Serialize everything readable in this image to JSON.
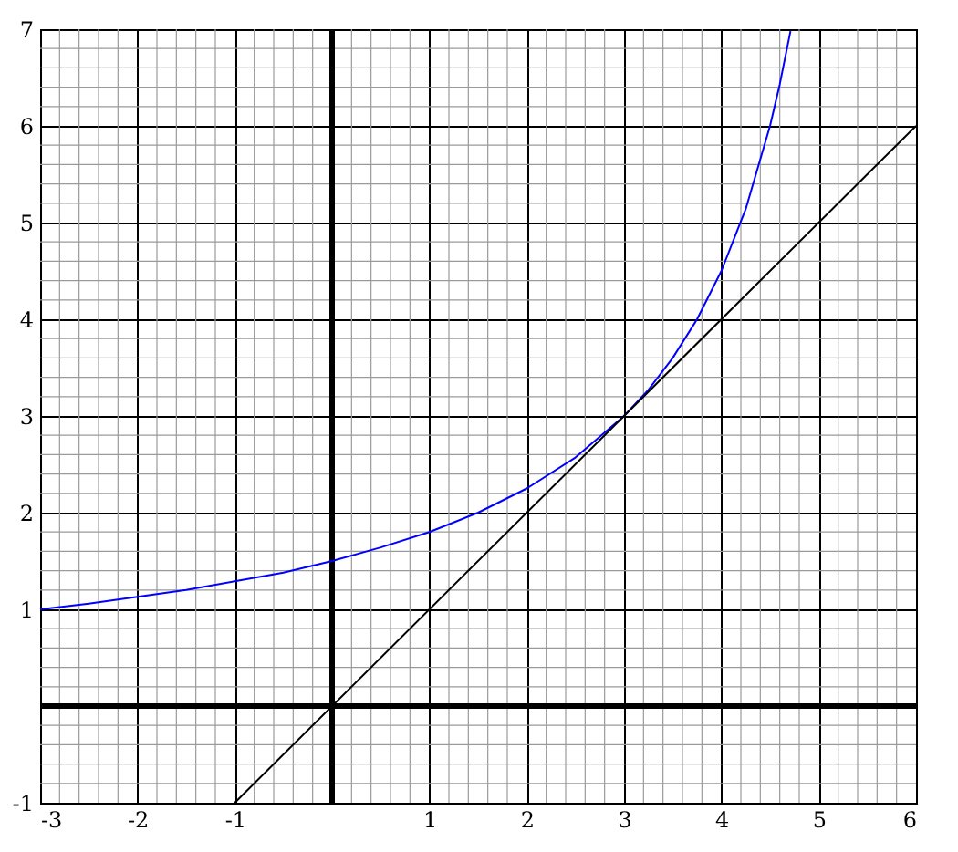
{
  "chart_data": {
    "type": "line",
    "xlim": [
      -3,
      6
    ],
    "ylim": [
      -1,
      7
    ],
    "xticks": [
      -3,
      -2,
      -1,
      {
        "value": 0,
        "label": null
      },
      1,
      2,
      3,
      4,
      5,
      6
    ],
    "yticks": [
      -1,
      {
        "value": 0,
        "label": null
      },
      1,
      2,
      3,
      4,
      5,
      6,
      7
    ],
    "grid": true,
    "marker": "none",
    "line_style": "solid",
    "series": [
      {
        "color": "#0000ff",
        "x": [
          -3,
          -2.5,
          -2,
          -1.5,
          -1,
          -0.5,
          0,
          0.5,
          1,
          1.5,
          2,
          2.5,
          3,
          3.25,
          3.5,
          3.75,
          4,
          4.25,
          4.5,
          4.6,
          4.71
        ],
        "values": [
          1,
          1.06,
          1.13,
          1.2,
          1.29,
          1.38,
          1.5,
          1.64,
          1.8,
          2,
          2.25,
          2.57,
          3,
          3.27,
          3.6,
          4,
          4.5,
          5.14,
          6,
          6.43,
          6.98
        ]
      },
      {
        "color": "#000000",
        "x": [
          -1,
          6
        ],
        "values": [
          -1,
          6
        ]
      }
    ]
  }
}
